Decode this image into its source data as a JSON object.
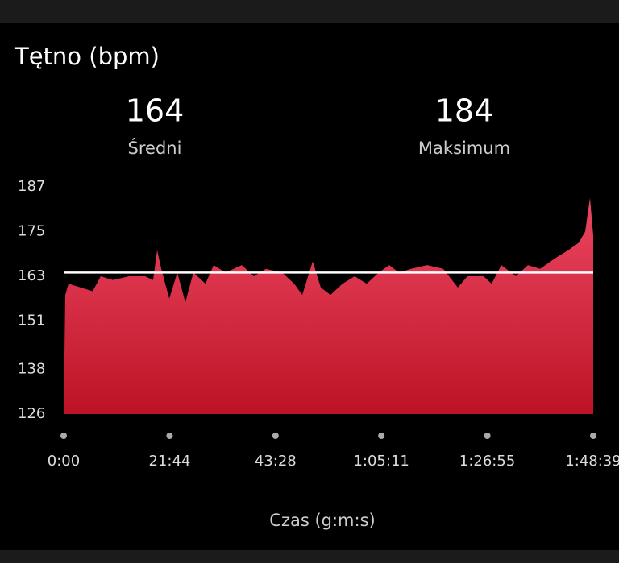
{
  "chart_data": {
    "type": "area",
    "title": "Tętno (bpm)",
    "average": {
      "value": 164,
      "label": "Średni"
    },
    "maximum": {
      "value": 184,
      "label": "Maksimum"
    },
    "xlabel": "Czas (g:m:s)",
    "x": [
      0,
      20,
      60,
      208,
      357,
      456,
      605,
      804,
      1002,
      1101,
      1151,
      1201,
      1300,
      1399,
      1498,
      1597,
      1746,
      1846,
      1994,
      2193,
      2342,
      2490,
      2689,
      2838,
      2937,
      3066,
      3165,
      3284,
      3433,
      3582,
      3731,
      3879,
      4008,
      4127,
      4276,
      4475,
      4673,
      4852,
      4971,
      5169,
      5268,
      5388,
      5566,
      5715,
      5864,
      6062,
      6211,
      6340,
      6420,
      6479,
      6519
    ],
    "values": [
      126,
      158,
      161,
      160,
      159,
      163,
      162,
      163,
      163,
      162,
      170,
      165,
      157,
      164,
      156,
      164,
      161,
      166,
      164,
      166,
      163,
      165,
      164,
      161,
      158,
      167,
      160,
      158,
      161,
      163,
      161,
      164,
      166,
      164,
      165,
      166,
      165,
      160,
      163,
      163,
      161,
      166,
      163,
      166,
      165,
      168,
      170,
      172,
      175,
      184,
      174
    ],
    "color": "#d8283f",
    "xlim": [
      0,
      6519
    ],
    "xticks": [
      {
        "value": 0,
        "label": "0:00"
      },
      {
        "value": 1304,
        "label": "21:44"
      },
      {
        "value": 2608,
        "label": "43:28"
      },
      {
        "value": 3911,
        "label": "1:05:11"
      },
      {
        "value": 5215,
        "label": "1:26:55"
      },
      {
        "value": 6519,
        "label": "1:48:39"
      }
    ],
    "ylim": [
      126,
      187
    ],
    "yticks": [
      126,
      138,
      151,
      163,
      175,
      187
    ]
  }
}
